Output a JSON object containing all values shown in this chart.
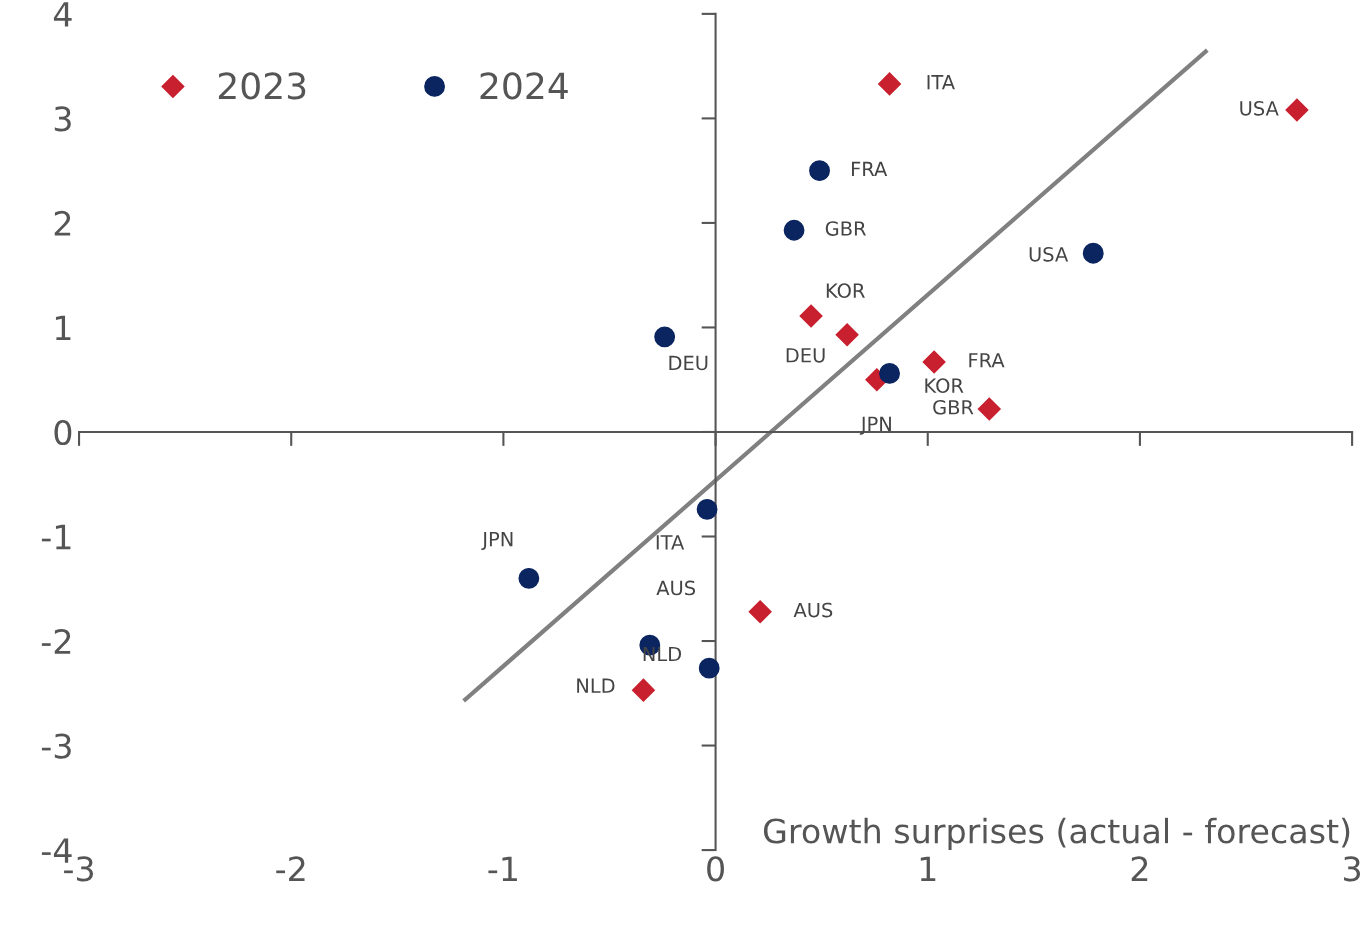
{
  "chart_data": {
    "type": "scatter",
    "xlabel": "Growth surprises (actual - forecast)",
    "xlim": [
      -3,
      3
    ],
    "ylim": [
      -4,
      4
    ],
    "xticks": [
      {
        "value": -3,
        "label": "-3"
      },
      {
        "value": -2,
        "label": "-2"
      },
      {
        "value": -1,
        "label": "-1"
      },
      0,
      1,
      2,
      3
    ],
    "yticks": [
      {
        "value": -4,
        "label": "-4"
      },
      {
        "value": -3,
        "label": "-3"
      },
      {
        "value": -2,
        "label": "-2"
      },
      {
        "value": -1,
        "label": "-1"
      },
      0,
      1,
      2,
      3,
      4
    ],
    "legend": "top left",
    "series": [
      {
        "name": "2023",
        "color": "#c8202f",
        "marker": "diamond",
        "x": [
          0.82,
          2.74,
          0.45,
          0.62,
          1.03,
          0.76,
          1.29,
          0.21,
          -0.34
        ],
        "values": [
          3.33,
          3.08,
          1.11,
          0.93,
          0.67,
          0.5,
          0.22,
          -1.72,
          -2.47
        ]
      },
      {
        "name": "2024",
        "color": "#0b2560",
        "marker": "circle",
        "x": [
          0.49,
          0.37,
          1.78,
          -0.24,
          0.82,
          -0.04,
          -0.88,
          -0.31,
          -0.03
        ],
        "values": [
          2.5,
          1.93,
          1.71,
          0.91,
          0.56,
          -0.74,
          -1.4,
          -2.04,
          -2.26
        ]
      },
      {
        "type": "line",
        "color": "#808080",
        "marker": "none",
        "x": [
          -1.18,
          2.31
        ],
        "values": [
          -2.56,
          3.64
        ]
      }
    ],
    "annotations": [
      {
        "text": "ITA",
        "x": 0.82,
        "y": 3.33
      },
      {
        "text": "USA",
        "x": 2.74,
        "y": 3.08
      },
      {
        "text": "KOR",
        "x": 0.45,
        "y": 1.11
      },
      {
        "text": "DEU",
        "x": 0.62,
        "y": 0.93
      },
      {
        "text": "FRA",
        "x": 1.03,
        "y": 0.67
      },
      {
        "text": "JPN",
        "x": 0.76,
        "y": 0.5
      },
      {
        "text": "GBR",
        "x": 1.29,
        "y": 0.22
      },
      {
        "text": "AUS",
        "x": 0.21,
        "y": -1.72
      },
      {
        "text": "NLD",
        "x": -0.34,
        "y": -2.47
      },
      {
        "text": "FRA",
        "x": 0.49,
        "y": 2.5
      },
      {
        "text": "GBR",
        "x": 0.37,
        "y": 1.93
      },
      {
        "text": "USA",
        "x": 1.78,
        "y": 1.71
      },
      {
        "text": "DEU",
        "x": -0.24,
        "y": 0.91
      },
      {
        "text": "KOR",
        "x": 0.82,
        "y": 0.56
      },
      {
        "text": "ITA",
        "x": -0.04,
        "y": -0.74
      },
      {
        "text": "JPN",
        "x": -0.88,
        "y": -1.4
      },
      {
        "text": "AUS",
        "x": -0.31,
        "y": -2.04
      },
      {
        "text": "NLD",
        "x": -0.03,
        "y": -2.26
      }
    ]
  }
}
